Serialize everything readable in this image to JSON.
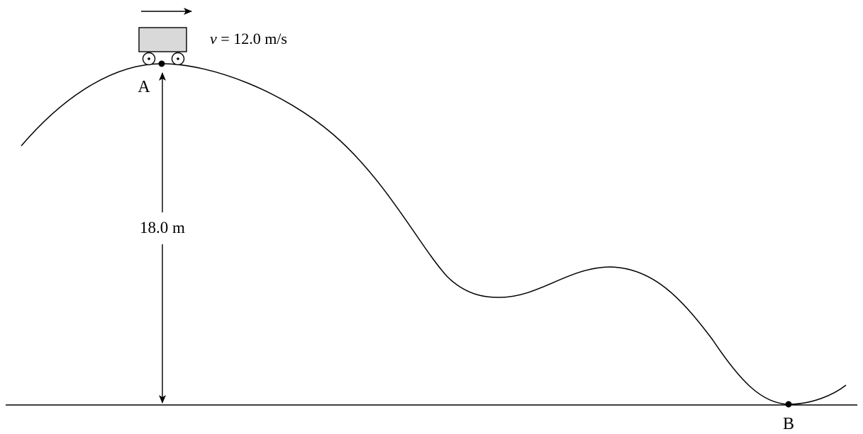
{
  "labels": {
    "point_a": "A",
    "point_b": "B",
    "height": "18.0 m",
    "velocity_symbol": "v",
    "velocity_equals": " = ",
    "velocity_value": "12.0",
    "velocity_unit": " m/s"
  },
  "colors": {
    "ink": "#000000",
    "cart_fill": "#d9d9d9"
  },
  "icons": {
    "direction": "right-arrow-icon",
    "wheel": "wheel-icon"
  }
}
